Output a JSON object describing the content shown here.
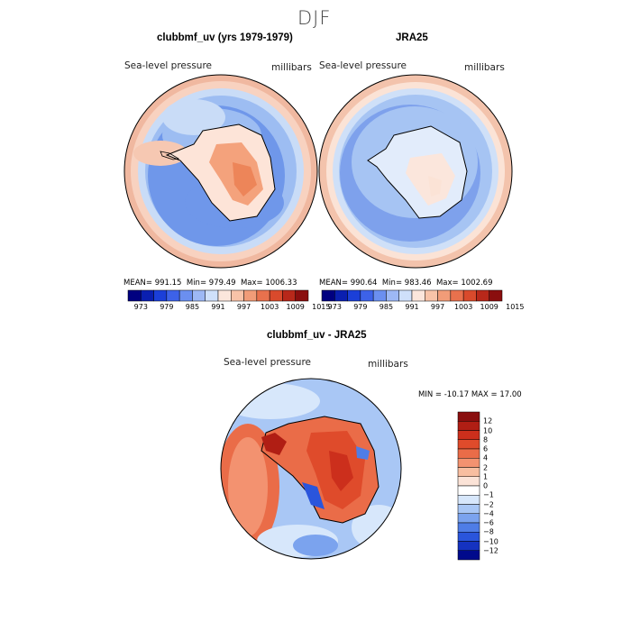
{
  "title": "DJF",
  "panels": [
    {
      "title": "clubbmf_uv (yrs 1979-1979)",
      "variable": "Sea-level pressure",
      "units": "millibars",
      "stats": {
        "mean_label": "MEAN=",
        "mean": "991.15",
        "min_label": "Min=",
        "min": "979.49",
        "max_label": "Max=",
        "max": "1006.33"
      }
    },
    {
      "title": "JRA25",
      "variable": "Sea-level pressure",
      "units": "millibars",
      "stats": {
        "mean_label": "MEAN=",
        "mean": "990.64",
        "min_label": "Min=",
        "min": "983.46",
        "max_label": "Max=",
        "max": "1002.69"
      }
    }
  ],
  "top_colorbar": {
    "ticks": [
      "973",
      "979",
      "985",
      "991",
      "997",
      "1003",
      "1009",
      "1015"
    ],
    "colors": [
      "#000080",
      "#0a1fb0",
      "#1b3fd8",
      "#3d62e8",
      "#6b8ff0",
      "#9db8f5",
      "#cfe0fa",
      "#fbe6dc",
      "#f8c3a8",
      "#f19c78",
      "#e8714d",
      "#d94a2c",
      "#b8281a",
      "#8a0e0e"
    ]
  },
  "difference": {
    "title": "clubbmf_uv - JRA25",
    "variable": "Sea-level pressure",
    "units": "millibars",
    "minmax": "MIN = -10.17 MAX =  17.00",
    "colorbar_ticks": [
      "12",
      "10",
      "8",
      "6",
      "4",
      "2",
      "1",
      "0",
      "−1",
      "−2",
      "−4",
      "−6",
      "−8",
      "−10",
      "−12"
    ],
    "colorbar_colors": [
      "#8a0e0e",
      "#b01e14",
      "#cc2f1c",
      "#df4b2b",
      "#ea6c48",
      "#f39270",
      "#f8bea0",
      "#fbe3d7",
      "#ffffff",
      "#d7e7fb",
      "#a9c7f5",
      "#7ba3ee",
      "#4f7de6",
      "#2a55dc",
      "#1532c0",
      "#000a8c"
    ]
  }
}
